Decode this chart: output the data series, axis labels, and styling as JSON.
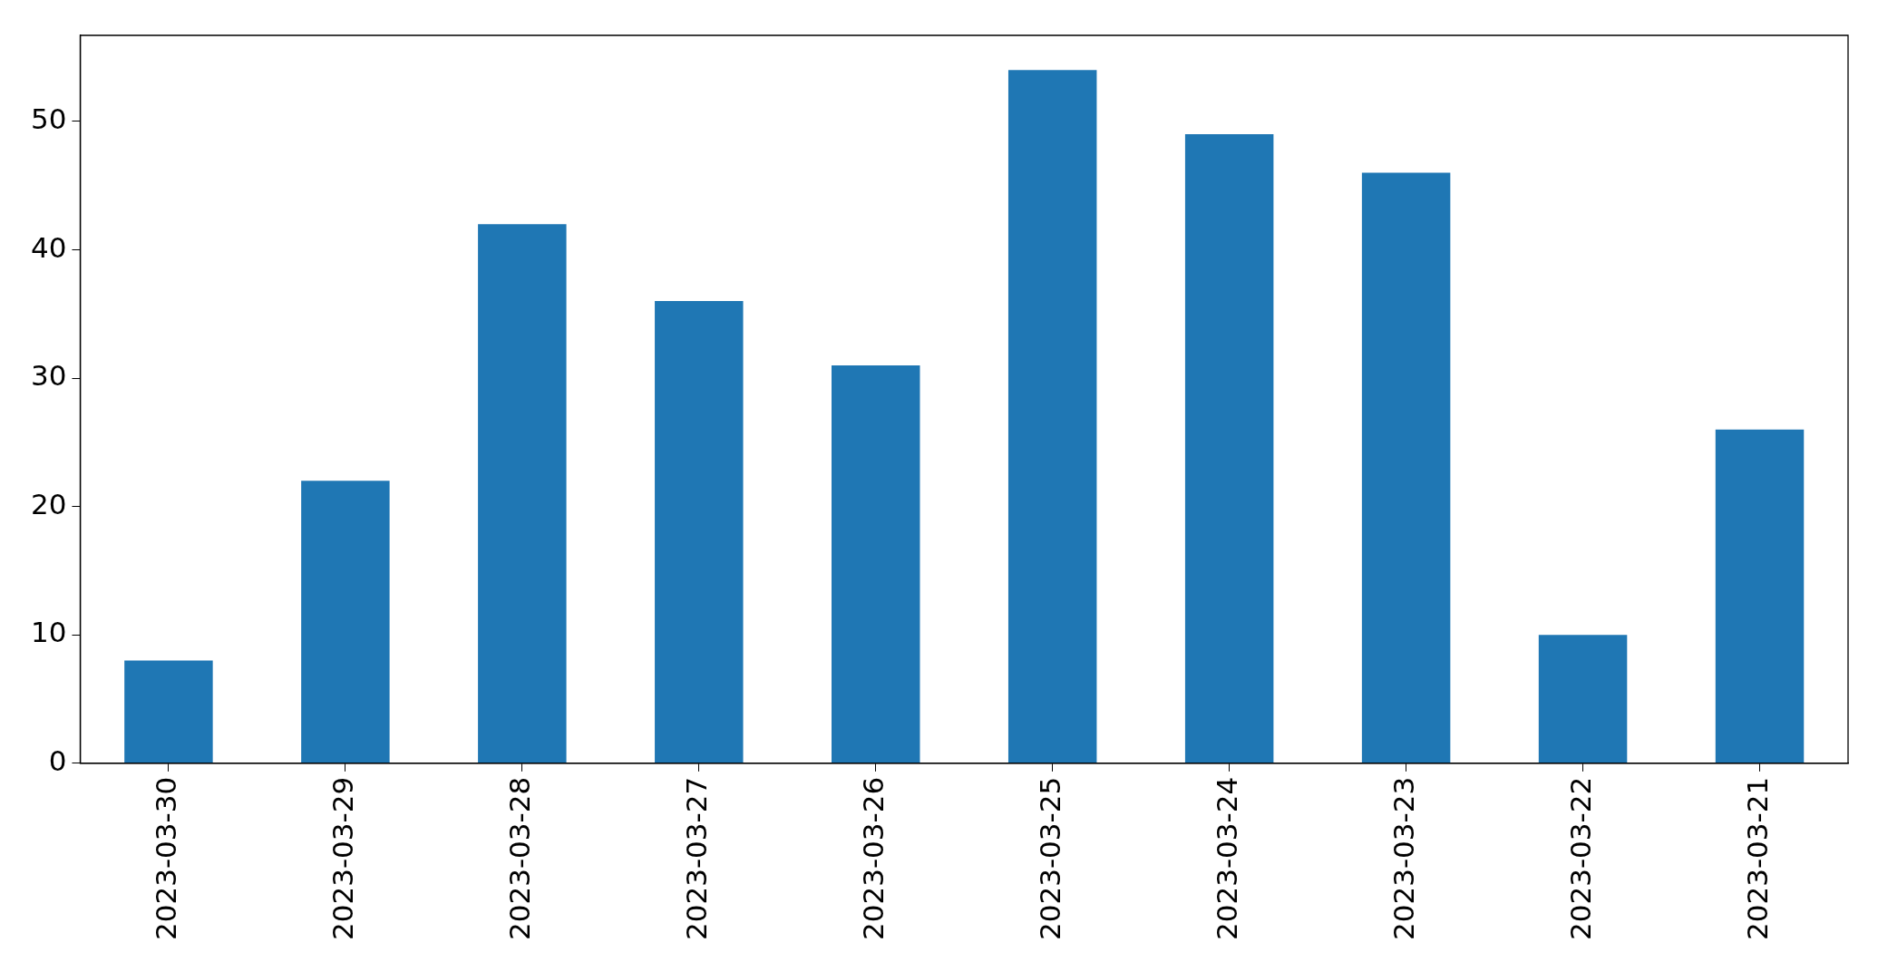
{
  "chart_data": {
    "type": "bar",
    "categories": [
      "2023-03-30",
      "2023-03-29",
      "2023-03-28",
      "2023-03-27",
      "2023-03-26",
      "2023-03-25",
      "2023-03-24",
      "2023-03-23",
      "2023-03-22",
      "2023-03-21"
    ],
    "values": [
      8,
      22,
      42,
      36,
      31,
      54,
      49,
      46,
      10,
      26
    ],
    "color": "#1f77b4",
    "ylim": [
      0,
      56.7
    ],
    "yticks": [
      0,
      10,
      20,
      30,
      40,
      50
    ],
    "grid": false,
    "legend": false
  }
}
